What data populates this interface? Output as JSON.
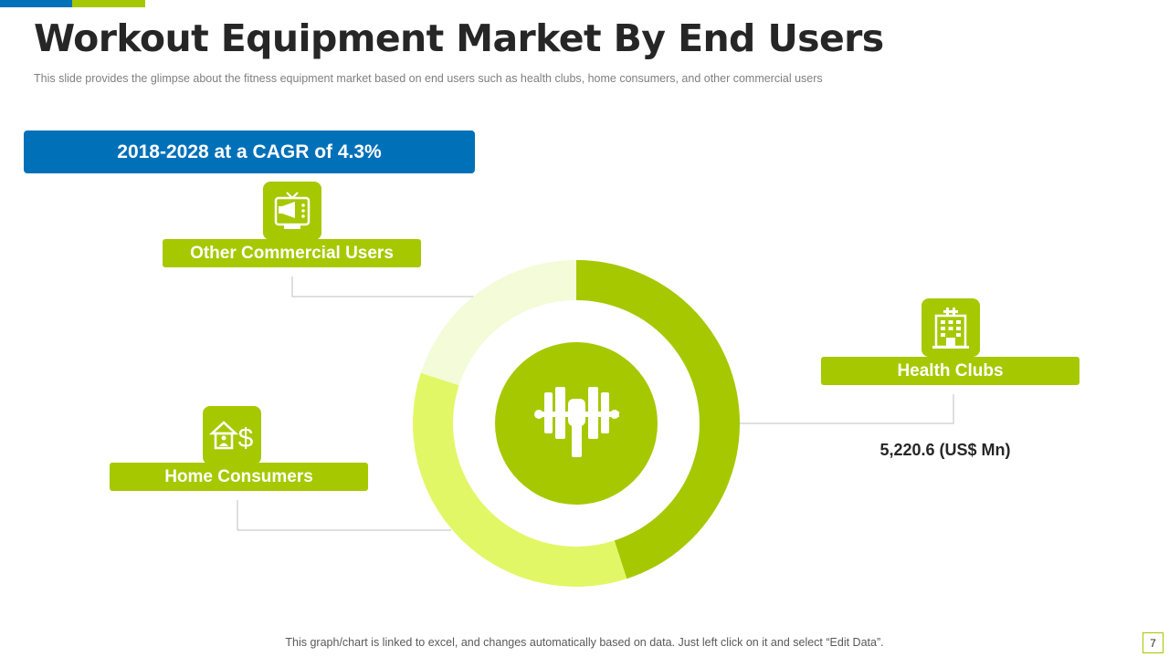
{
  "slide": {
    "title": "Workout Equipment Market By End Users",
    "subtitle": "This slide provides  the glimpse about the fitness equipment market based on end users such as health clubs, home consumers, and other commercial users",
    "cagr_label": "2018-2028 at a CAGR of 4.3%",
    "footer_note": "This graph/chart is linked to excel, and changes automatically based on data. Just left click on it and select “Edit Data”.",
    "page_number": "7"
  },
  "colors": {
    "blue": "#0070b8",
    "green": "#a6c800",
    "light_green": "#e1f766",
    "pale_green": "#f4fbd9",
    "connector": "#bfbfbf"
  },
  "segments": {
    "health_clubs": {
      "label": "Health Clubs",
      "value_label": "5,220.6 (US$ Mn)",
      "icon": "building-icon"
    },
    "home_consumers": {
      "label": "Home Consumers",
      "icon": "home-dollar-icon"
    },
    "other_commercial": {
      "label": "Other Commercial Users",
      "icon": "tv-megaphone-icon"
    }
  },
  "center_icon": "dumbbell-fist-icon",
  "chart_data": {
    "type": "pie",
    "variant": "donut",
    "title": "Workout Equipment Market By End Users",
    "unit": "US$ Mn",
    "start": "top",
    "direction": "clockwise",
    "categories": [
      "Health Clubs",
      "Home Consumers",
      "Other Commercial Users"
    ],
    "shares_percent": [
      45,
      35,
      20
    ],
    "labeled_values": {
      "Health Clubs": 5220.6
    },
    "legend": "none",
    "slice_colors": [
      "#a6c800",
      "#e1f766",
      "#f4fbd9"
    ]
  }
}
